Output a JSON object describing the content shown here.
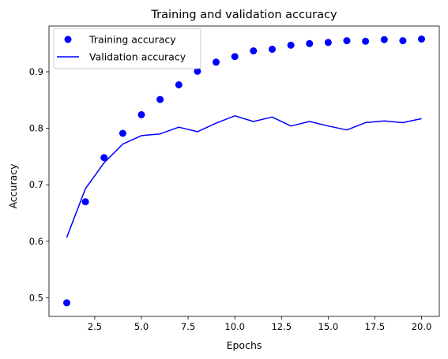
{
  "chart_data": {
    "type": "line",
    "title": "Training and validation accuracy",
    "xlabel": "Epochs",
    "ylabel": "Accuracy",
    "xlim": [
      0.05,
      20.95
    ],
    "ylim": [
      0.467,
      0.981
    ],
    "xticks": [
      2.5,
      5.0,
      7.5,
      10.0,
      12.5,
      15.0,
      17.5,
      20.0
    ],
    "xtick_labels": [
      "2.5",
      "5.0",
      "7.5",
      "10.0",
      "12.5",
      "15.0",
      "17.5",
      "20.0"
    ],
    "yticks": [
      0.5,
      0.6,
      0.7,
      0.8,
      0.9
    ],
    "ytick_labels": [
      "0.5",
      "0.6",
      "0.7",
      "0.8",
      "0.9"
    ],
    "grid": false,
    "legend_position": "top-left",
    "x": [
      1,
      2,
      3,
      4,
      5,
      6,
      7,
      8,
      9,
      10,
      11,
      12,
      13,
      14,
      15,
      16,
      17,
      18,
      19,
      20
    ],
    "series": [
      {
        "name": "Training accuracy",
        "style": "markers",
        "color": "#0000ff",
        "values": [
          0.491,
          0.67,
          0.748,
          0.791,
          0.824,
          0.851,
          0.877,
          0.901,
          0.917,
          0.927,
          0.937,
          0.94,
          0.947,
          0.95,
          0.952,
          0.955,
          0.954,
          0.957,
          0.955,
          0.958
        ]
      },
      {
        "name": "Validation accuracy",
        "style": "line",
        "color": "#0000ff",
        "values": [
          0.607,
          0.693,
          0.739,
          0.772,
          0.787,
          0.79,
          0.802,
          0.794,
          0.809,
          0.822,
          0.812,
          0.82,
          0.804,
          0.812,
          0.804,
          0.797,
          0.81,
          0.813,
          0.81,
          0.817
        ]
      }
    ]
  }
}
